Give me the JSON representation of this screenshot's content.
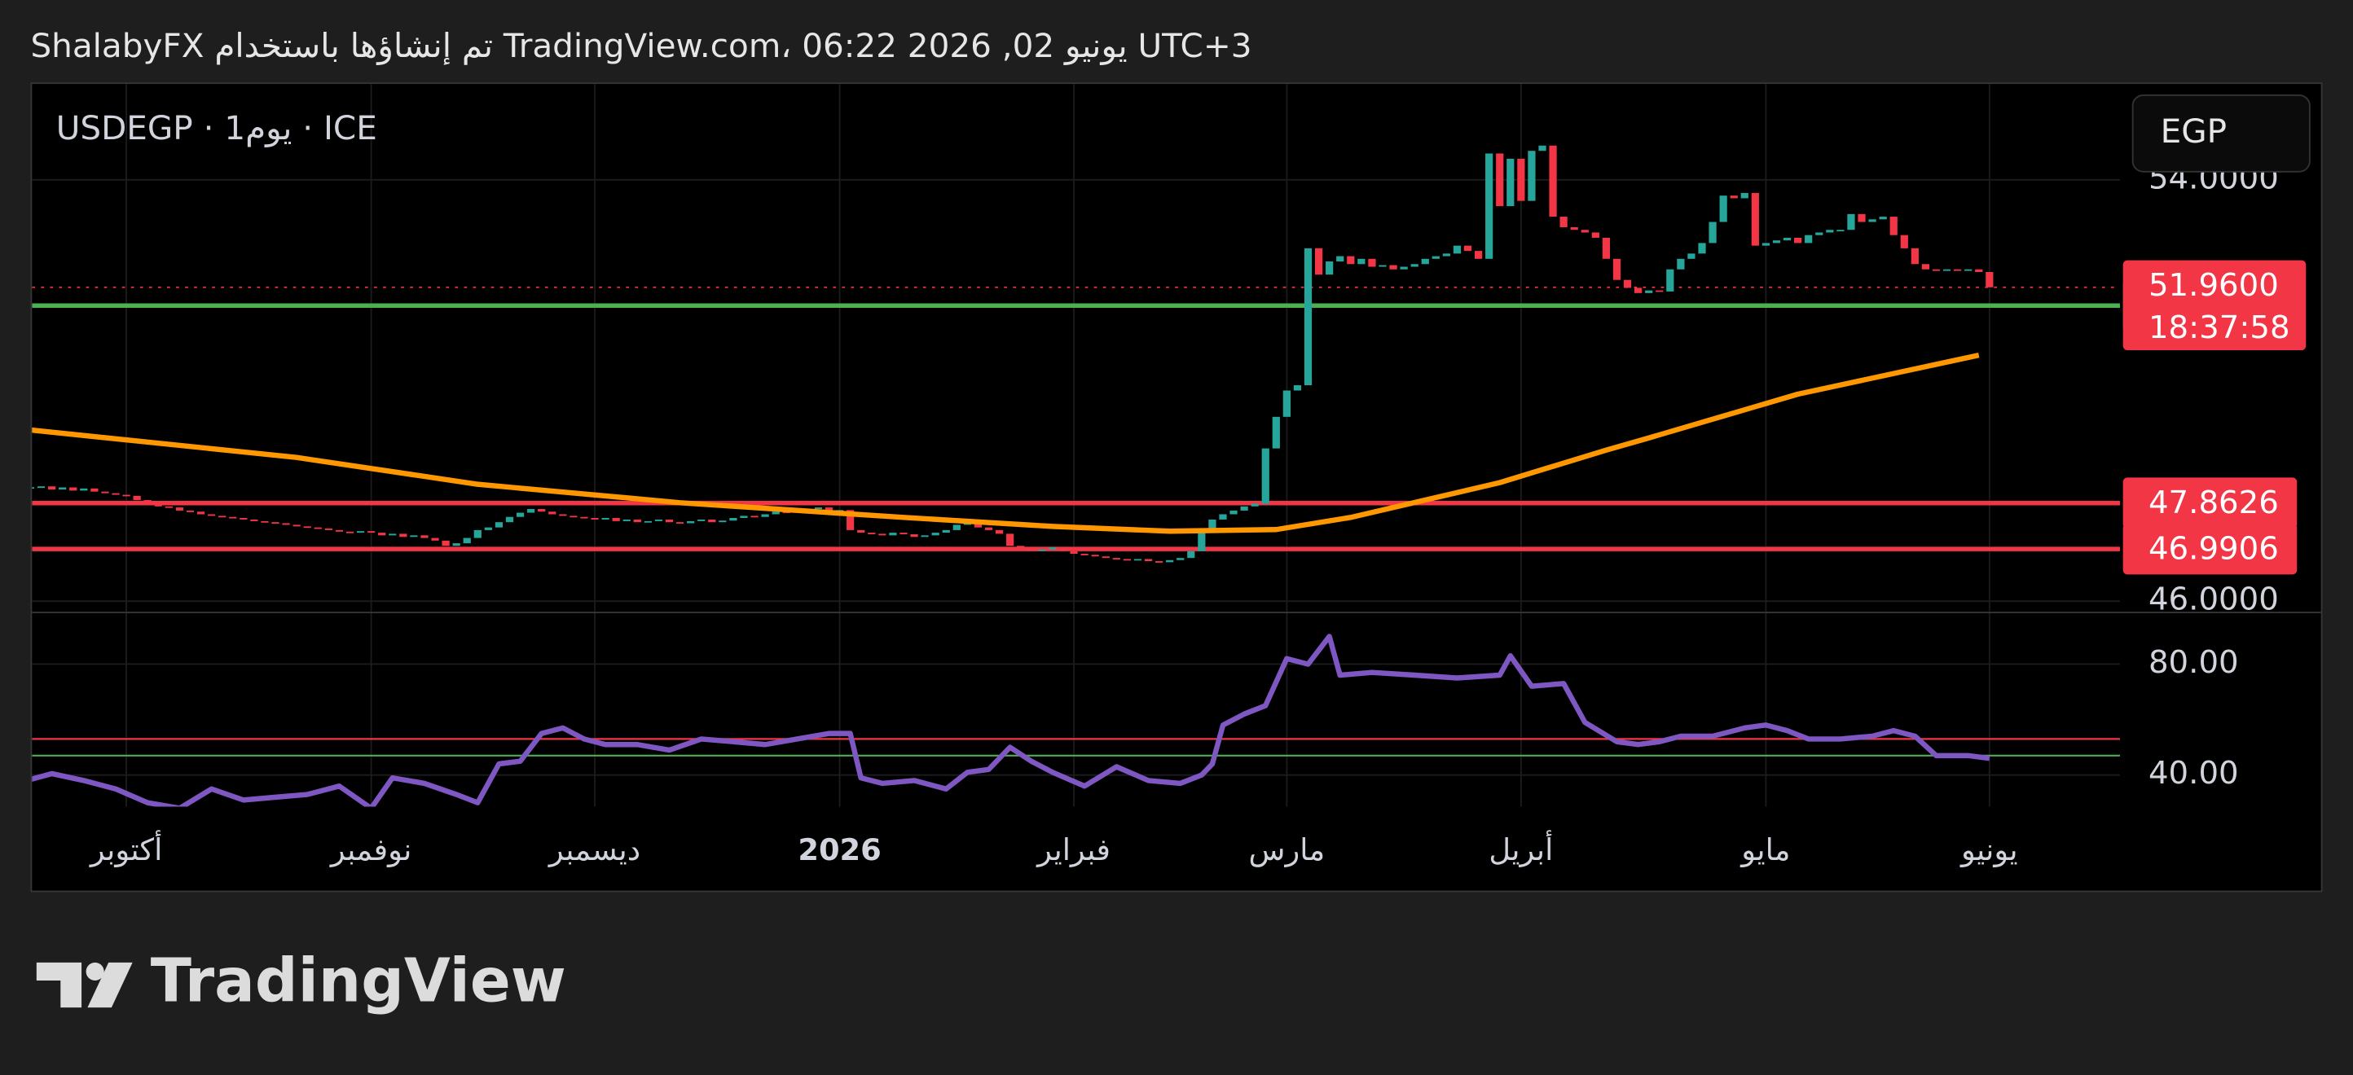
{
  "header": {
    "caption": "ShalabyFX تم إنشاؤها باستخدام TradingView.com، 06:22 2026 ,02 يونيو UTC+3",
    "brand": "TradingView"
  },
  "chart_data": {
    "type": "candlestick",
    "symbol": "USDEGP · 1يوم · ICE",
    "currency": "EGP",
    "categories": [
      null,
      null,
      null,
      null,
      null,
      null,
      null,
      null,
      null,
      "أكتوبر",
      null,
      null,
      null,
      null,
      null,
      null,
      null,
      null,
      null,
      null,
      null,
      null,
      null,
      null,
      null,
      null,
      null,
      null,
      null,
      null,
      null,
      null,
      "نوفمبر",
      null,
      null,
      null,
      null,
      null,
      null,
      null,
      null,
      null,
      null,
      null,
      null,
      null,
      null,
      null,
      null,
      null,
      null,
      null,
      null,
      "ديسمبر",
      null,
      null,
      null,
      null,
      null,
      null,
      null,
      null,
      null,
      null,
      null,
      null,
      null,
      null,
      null,
      null,
      null,
      null,
      null,
      null,
      null,
      null,
      "2026",
      null,
      null,
      null,
      null,
      null,
      null,
      null,
      null,
      null,
      null,
      null,
      null,
      null,
      null,
      null,
      null,
      null,
      null,
      null,
      null,
      null,
      "فبراير",
      null,
      null,
      null,
      null,
      null,
      null,
      null,
      null,
      null,
      null,
      null,
      null,
      null,
      null,
      null,
      null,
      null,
      null,
      null,
      "مارس",
      null,
      null,
      null,
      null,
      null,
      null,
      null,
      null,
      null,
      null,
      null,
      null,
      null,
      null,
      null,
      null,
      null,
      null,
      null,
      null,
      null,
      "أبريل",
      null,
      null,
      null,
      null,
      null,
      null,
      null,
      null,
      null,
      null,
      null,
      null,
      null,
      null,
      null,
      null,
      null,
      null,
      null,
      null,
      null,
      null,
      "مايو",
      null,
      null,
      null,
      null,
      null,
      null,
      null,
      null,
      null,
      null,
      null,
      null,
      null,
      null,
      null,
      null,
      null,
      null,
      null,
      null,
      "يونيو"
    ],
    "series": [
      {
        "color_up": "#26a69a",
        "color_down": "#f23645",
        "values": [
          48.15,
          48.18,
          48.12,
          48.16,
          48.1,
          48.14,
          48.08,
          48.05,
          48.02,
          48.0,
          47.92,
          47.85,
          47.8,
          47.78,
          47.72,
          47.7,
          47.65,
          47.62,
          47.6,
          47.58,
          47.55,
          47.52,
          47.5,
          47.48,
          47.45,
          47.42,
          47.4,
          47.38,
          47.35,
          47.32,
          47.3,
          47.33,
          47.3,
          47.25,
          47.28,
          47.22,
          47.25,
          47.2,
          47.15,
          47.05,
          47.1,
          47.2,
          47.35,
          47.4,
          47.5,
          47.6,
          47.68,
          47.75,
          47.7,
          47.65,
          47.62,
          47.6,
          47.58,
          47.55,
          47.58,
          47.52,
          47.55,
          47.5,
          47.52,
          47.55,
          47.5,
          47.48,
          47.52,
          47.55,
          47.5,
          47.53,
          47.58,
          47.62,
          47.6,
          47.65,
          47.7,
          47.68,
          47.72,
          47.75,
          47.78,
          47.7,
          47.73,
          47.35,
          47.3,
          47.28,
          47.25,
          47.3,
          47.27,
          47.22,
          47.25,
          47.3,
          47.35,
          47.45,
          47.5,
          47.4,
          47.35,
          47.28,
          47.05,
          47.0,
          46.95,
          46.98,
          47.02,
          46.95,
          46.9,
          46.88,
          46.85,
          46.82,
          46.8,
          46.78,
          46.8,
          46.76,
          46.74,
          46.78,
          46.82,
          46.95,
          47.3,
          47.55,
          47.65,
          47.72,
          47.8,
          47.85,
          48.9,
          49.5,
          50.0,
          50.1,
          52.7,
          52.2,
          52.45,
          52.55,
          52.4,
          52.5,
          52.35,
          52.38,
          52.3,
          52.35,
          52.4,
          52.5,
          52.55,
          52.6,
          52.75,
          52.65,
          52.5,
          54.5,
          53.5,
          54.4,
          53.6,
          54.55,
          54.65,
          53.3,
          53.1,
          53.05,
          53.0,
          52.9,
          52.5,
          52.1,
          51.95,
          51.85,
          51.9,
          51.88,
          52.3,
          52.5,
          52.6,
          52.8,
          53.2,
          53.7,
          53.65,
          53.75,
          52.75,
          52.8,
          52.85,
          52.9,
          52.8,
          52.95,
          53.0,
          53.05,
          53.05,
          53.35,
          53.2,
          53.25,
          53.3,
          52.95,
          52.7,
          52.4,
          52.3,
          52.28,
          52.3,
          52.28,
          52.3,
          52.25,
          51.96
        ]
      }
    ],
    "ylim": [
      45.8,
      55.82
    ],
    "yticks": [
      {
        "value": 54,
        "label": "54.0000"
      },
      {
        "value": 46,
        "label": "46.0000"
      }
    ],
    "current_price": {
      "value": 51.96,
      "label": "51.9600",
      "countdown": "18:37:58",
      "color": "#f23645"
    },
    "levels": [
      {
        "value": 51.6116,
        "color": "#4caf50"
      },
      {
        "value": 47.8626,
        "color": "#f23645"
      },
      {
        "value": 46.9906,
        "color": "#f23645"
      }
    ],
    "ma": {
      "color": "#ff9800",
      "index": [
        0,
        25,
        42,
        61,
        82,
        96,
        107,
        117,
        124,
        138,
        148,
        152,
        166,
        183
      ],
      "values": [
        49.25,
        48.73,
        48.22,
        47.87,
        47.59,
        47.42,
        47.33,
        47.36,
        47.59,
        48.25,
        48.87,
        49.1,
        49.93,
        50.67
      ]
    },
    "rsi": {
      "color": "#7e57c2",
      "ylim": [
        28.6,
        98.9
      ],
      "yticks": [
        {
          "value": 80,
          "label": "80.00"
        },
        {
          "value": 40,
          "label": "40.00"
        }
      ],
      "levels": [
        {
          "value": 53,
          "color": "#f23645"
        },
        {
          "value": 47,
          "color": "#4caf50"
        }
      ],
      "index": [
        0,
        2,
        5,
        8,
        11,
        14,
        17,
        20,
        23,
        26,
        29,
        32,
        34,
        37,
        40,
        42,
        44,
        46,
        48,
        50,
        52,
        54,
        57,
        60,
        63,
        66,
        69,
        72,
        75,
        77,
        78,
        80,
        83,
        86,
        88,
        90,
        92,
        94,
        96,
        99,
        102,
        105,
        108,
        110,
        111,
        112,
        114,
        116,
        118,
        120,
        122,
        123,
        126,
        130,
        134,
        138,
        139,
        141,
        144,
        146,
        149,
        151,
        153,
        155,
        158,
        161,
        163,
        165,
        167,
        170,
        173,
        175,
        177,
        179,
        182,
        184
      ],
      "values": [
        38.4,
        40.5,
        38,
        35,
        30,
        28,
        35,
        31,
        32,
        33,
        36,
        28,
        39,
        37,
        33,
        30,
        44,
        45,
        55,
        57,
        53,
        51,
        51,
        49,
        53,
        52,
        51,
        53,
        55,
        55,
        39,
        37,
        38,
        35,
        41,
        42,
        50,
        45,
        41,
        36,
        43,
        38,
        37,
        40,
        44,
        58,
        62,
        65,
        82,
        80,
        90,
        76,
        77,
        76,
        75,
        76,
        83,
        72,
        73,
        59,
        52,
        51,
        52,
        54,
        54,
        57,
        58,
        56,
        53,
        53,
        54,
        56,
        54,
        47,
        47,
        46
      ]
    }
  }
}
